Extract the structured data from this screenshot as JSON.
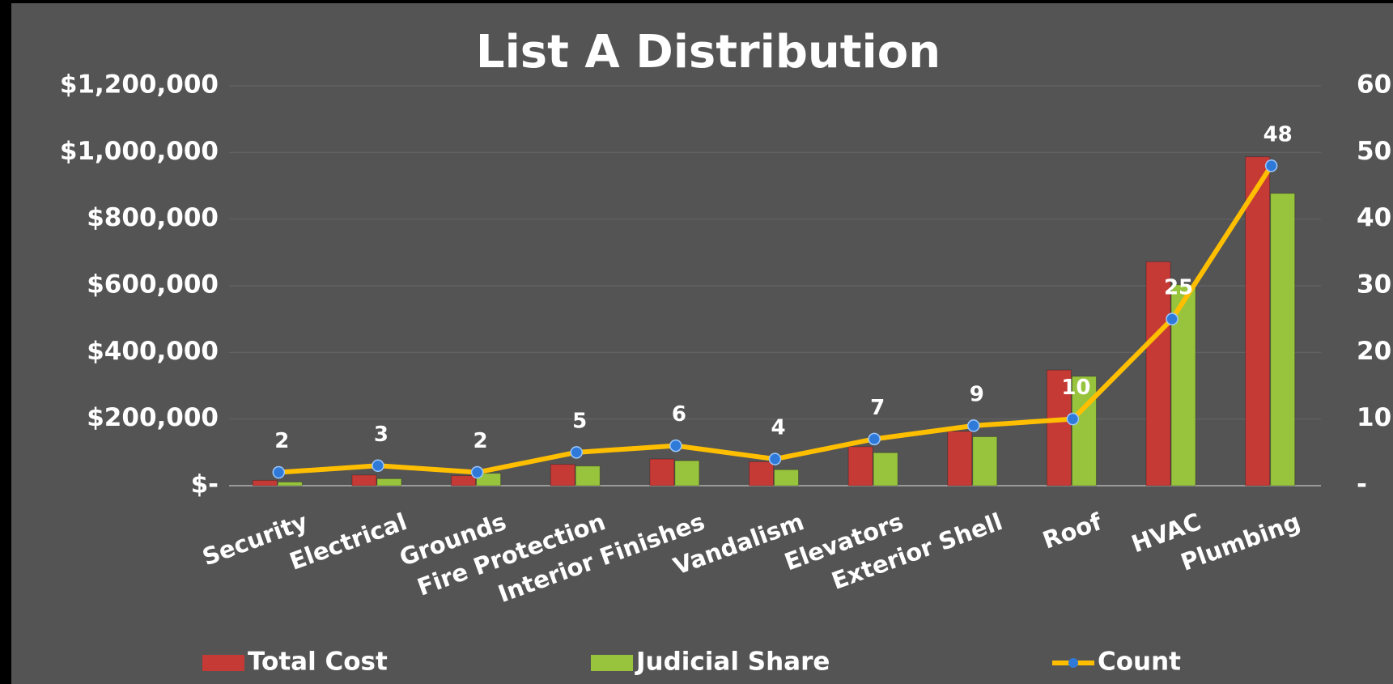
{
  "chart_data": {
    "type": "bar",
    "title": "List A Distribution",
    "categories": [
      "Security",
      "Electrical",
      "Grounds",
      "Fire Protection",
      "Interior Finishes",
      "Vandalism",
      "Elevators",
      "Exterior Shell",
      "Roof",
      "HVAC",
      "Plumbing"
    ],
    "series": [
      {
        "name": "Total Cost",
        "type": "bar",
        "color": "#c63a36",
        "values": [
          16000,
          32000,
          30000,
          64000,
          80000,
          72000,
          117000,
          163000,
          347000,
          672000,
          987000
        ]
      },
      {
        "name": "Judicial Share",
        "type": "bar",
        "color": "#97c43c",
        "values": [
          11000,
          21000,
          37000,
          59000,
          75000,
          48000,
          99000,
          147000,
          328000,
          603000,
          877000
        ]
      },
      {
        "name": "Count",
        "type": "line",
        "axis": "y2",
        "color": "#ffbf00",
        "marker_color": "#2f7ad8",
        "values": [
          2,
          3,
          2,
          5,
          6,
          4,
          7,
          9,
          10,
          25,
          48
        ],
        "data_labels": true
      }
    ],
    "ylim": [
      0,
      1200000
    ],
    "yticks": [
      {
        "value": 0,
        "label": "$-"
      },
      {
        "value": 200000,
        "label": "$200,000"
      },
      {
        "value": 400000,
        "label": "$400,000"
      },
      {
        "value": 600000,
        "label": "$600,000"
      },
      {
        "value": 800000,
        "label": "$800,000"
      },
      {
        "value": 1000000,
        "label": "$1,000,000"
      },
      {
        "value": 1200000,
        "label": "$1,200,000"
      }
    ],
    "y2lim": [
      0,
      60
    ],
    "y2ticks": [
      {
        "value": 0,
        "label": "-"
      },
      10,
      20,
      30,
      40,
      50,
      60
    ],
    "grid": true,
    "legend": "bottom"
  }
}
